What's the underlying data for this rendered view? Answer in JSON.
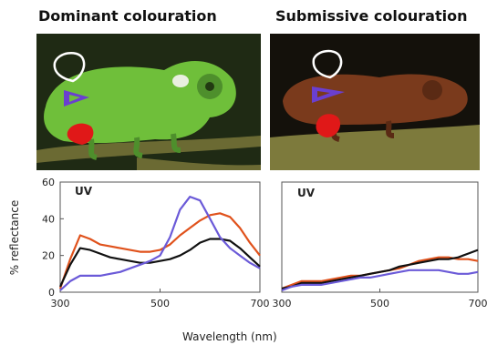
{
  "titles": {
    "left": "Dominant colouration",
    "right": "Submissive colouration"
  },
  "photos": {
    "left": {
      "background": "#1f2a14",
      "body": "#6fbf3a",
      "branch": "#6b6a33"
    },
    "right": {
      "background": "#14110b",
      "body": "#7a3a1c",
      "branch": "#7d7a3c"
    }
  },
  "marker_colors": {
    "white": "#ffffff",
    "purple": "#6a3fd0",
    "red": "#e01818"
  },
  "chart_data": [
    {
      "type": "line",
      "panel": "dominant",
      "annotation": "UV",
      "xlabel": "Wavelength (nm)",
      "ylabel": "% reflectance",
      "xlim": [
        300,
        700
      ],
      "ylim": [
        0,
        60
      ],
      "xticks": [
        "300",
        "500",
        "700"
      ],
      "yticks": [
        "0",
        "20",
        "40",
        "60"
      ],
      "series": [
        {
          "color": "#e0521c",
          "x": [
            300,
            320,
            340,
            360,
            380,
            400,
            420,
            440,
            460,
            480,
            500,
            520,
            540,
            560,
            580,
            600,
            620,
            640,
            660,
            680,
            700
          ],
          "y": [
            2,
            18,
            31,
            29,
            26,
            25,
            24,
            23,
            22,
            22,
            23,
            26,
            31,
            35,
            39,
            42,
            43,
            41,
            35,
            27,
            20
          ]
        },
        {
          "color": "#111111",
          "x": [
            300,
            320,
            340,
            360,
            380,
            400,
            420,
            440,
            460,
            480,
            500,
            520,
            540,
            560,
            580,
            600,
            620,
            640,
            660,
            680,
            700
          ],
          "y": [
            3,
            15,
            24,
            23,
            21,
            19,
            18,
            17,
            16,
            16,
            17,
            18,
            20,
            23,
            27,
            29,
            29,
            28,
            24,
            19,
            14
          ]
        },
        {
          "color": "#6b5ad8",
          "x": [
            300,
            320,
            340,
            360,
            380,
            400,
            420,
            440,
            460,
            480,
            500,
            520,
            540,
            560,
            580,
            600,
            620,
            640,
            660,
            680,
            700
          ],
          "y": [
            1,
            6,
            9,
            9,
            9,
            10,
            11,
            13,
            15,
            17,
            20,
            30,
            45,
            52,
            50,
            40,
            30,
            24,
            20,
            16,
            13
          ]
        }
      ]
    },
    {
      "type": "line",
      "panel": "submissive",
      "annotation": "UV",
      "xlabel": "",
      "ylabel": "",
      "xlim": [
        300,
        700
      ],
      "ylim": [
        0,
        60
      ],
      "xticks": [
        "300",
        "500",
        "700"
      ],
      "yticks": [],
      "series": [
        {
          "color": "#e0521c",
          "x": [
            300,
            320,
            340,
            360,
            380,
            400,
            420,
            440,
            460,
            480,
            500,
            520,
            540,
            560,
            580,
            600,
            620,
            640,
            660,
            680,
            700
          ],
          "y": [
            2,
            4,
            6,
            6,
            6,
            7,
            8,
            9,
            9,
            10,
            11,
            12,
            13,
            15,
            17,
            18,
            19,
            19,
            18,
            18,
            17
          ]
        },
        {
          "color": "#111111",
          "x": [
            300,
            320,
            340,
            360,
            380,
            400,
            420,
            440,
            460,
            480,
            500,
            520,
            540,
            560,
            580,
            600,
            620,
            640,
            660,
            680,
            700
          ],
          "y": [
            2,
            3,
            5,
            5,
            5,
            6,
            7,
            8,
            9,
            10,
            11,
            12,
            14,
            15,
            16,
            17,
            18,
            18,
            19,
            21,
            23
          ]
        },
        {
          "color": "#6b5ad8",
          "x": [
            300,
            320,
            340,
            360,
            380,
            400,
            420,
            440,
            460,
            480,
            500,
            520,
            540,
            560,
            580,
            600,
            620,
            640,
            660,
            680,
            700
          ],
          "y": [
            1,
            3,
            4,
            4,
            4,
            5,
            6,
            7,
            8,
            8,
            9,
            10,
            11,
            12,
            12,
            12,
            12,
            11,
            10,
            10,
            11
          ]
        }
      ]
    }
  ]
}
